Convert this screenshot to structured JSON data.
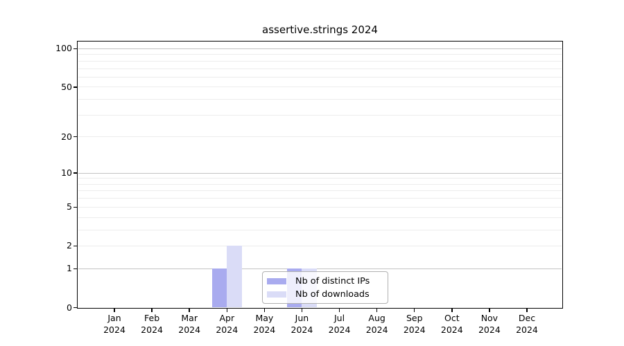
{
  "chart_data": {
    "type": "bar",
    "title": "assertive.strings 2024",
    "categories": [
      "Jan",
      "Feb",
      "Mar",
      "Apr",
      "May",
      "Jun",
      "Jul",
      "Aug",
      "Sep",
      "Oct",
      "Nov",
      "Dec"
    ],
    "year_label": "2024",
    "series": [
      {
        "name": "Nb of distinct IPs",
        "color": "#a9abef",
        "values": [
          0,
          0,
          0,
          1,
          0,
          1,
          0,
          0,
          0,
          0,
          0,
          0
        ]
      },
      {
        "name": "Nb of downloads",
        "color": "#dadcf7",
        "values": [
          0,
          0,
          0,
          2,
          0,
          1,
          0,
          0,
          0,
          0,
          0,
          0
        ]
      }
    ],
    "y_axis": {
      "tick_labels": [
        0,
        1,
        2,
        5,
        10,
        20,
        50,
        100
      ],
      "major_gridlines": [
        1,
        10,
        100
      ],
      "minor_gridlines": [
        2,
        3,
        4,
        5,
        6,
        7,
        8,
        9,
        20,
        30,
        40,
        50,
        60,
        70,
        80,
        90
      ],
      "scale": "log10(1+x)",
      "range": [
        0,
        114
      ]
    },
    "grid": "horizontal",
    "legend": {
      "position": "inside-bottom-center"
    },
    "style": {
      "background": "#ffffff",
      "text_color": "#000000",
      "axis_color": "#000000",
      "major_grid_color": "#c3c3c3",
      "minor_grid_color": "#ececec",
      "legend_border_color": "#b0b0b0",
      "legend_background": "rgba(255,255,255,0.8)"
    }
  }
}
